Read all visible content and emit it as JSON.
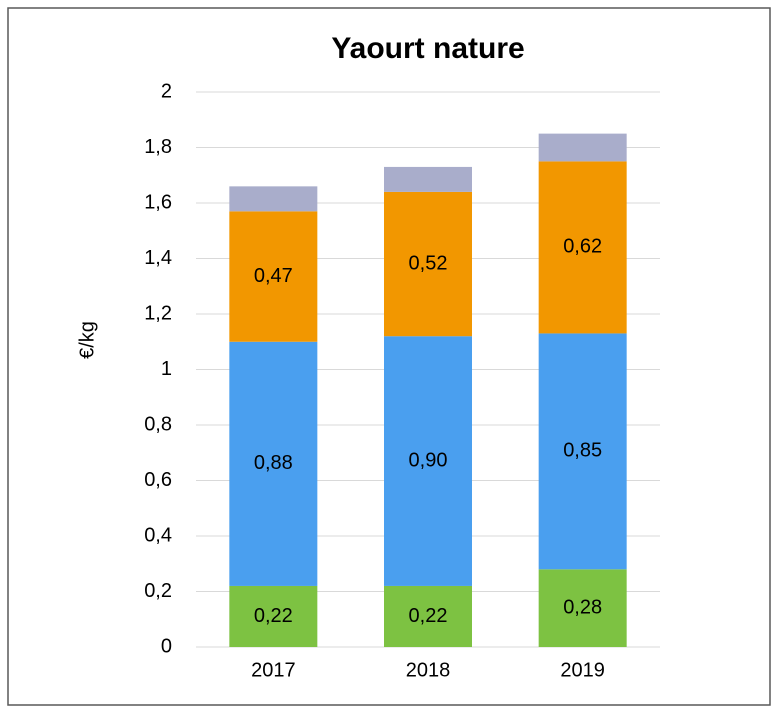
{
  "chart_data": {
    "type": "stacked-bar",
    "title": "Yaourt nature",
    "y_label": "€/kg",
    "categories": [
      "2017",
      "2018",
      "2019"
    ],
    "series": [
      {
        "color": "#7dc242",
        "values": [
          0.22,
          0.22,
          0.28
        ],
        "value_labels": [
          "0,22",
          "0,22",
          "0,28"
        ]
      },
      {
        "color": "#4a9fef",
        "values": [
          0.88,
          0.9,
          0.85
        ],
        "value_labels": [
          "0,88",
          "0,90",
          "0,85"
        ]
      },
      {
        "color": "#f29700",
        "values": [
          0.47,
          0.52,
          0.62
        ],
        "value_labels": [
          "0,47",
          "0,52",
          "0,62"
        ]
      },
      {
        "color": "#a9adcb",
        "values": [
          0.09,
          0.09,
          0.1
        ]
      }
    ],
    "ylim": [
      0,
      2
    ],
    "yticks": [
      0,
      {
        "value": 0.2,
        "label": "0,2"
      },
      {
        "value": 0.4,
        "label": "0,4"
      },
      {
        "value": 0.6,
        "label": "0,6"
      },
      {
        "value": 0.8,
        "label": "0,8"
      },
      1,
      {
        "value": 1.2,
        "label": "1,2"
      },
      {
        "value": 1.4,
        "label": "1,4"
      },
      {
        "value": 1.6,
        "label": "1,6"
      },
      {
        "value": 1.8,
        "label": "1,8"
      },
      2
    ],
    "grid": true
  }
}
